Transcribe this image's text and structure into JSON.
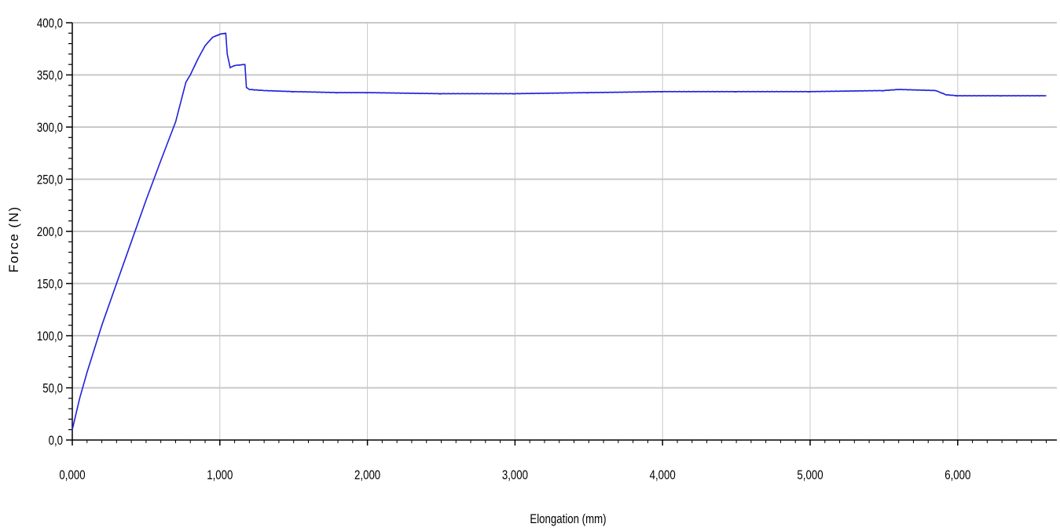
{
  "chart_data": {
    "type": "line",
    "title": "",
    "xlabel": "Elongation (mm)",
    "ylabel": "Force (N)",
    "xlim": [
      0,
      6.6
    ],
    "ylim": [
      0,
      400
    ],
    "x_ticks": [
      0,
      1,
      2,
      3,
      4,
      5,
      6
    ],
    "x_tick_labels": [
      "0,000",
      "1,000",
      "2,000",
      "3,000",
      "4,000",
      "5,000",
      "6,000"
    ],
    "y_ticks": [
      0,
      50,
      100,
      150,
      200,
      250,
      300,
      350,
      400
    ],
    "y_tick_labels": [
      "0,0",
      "50,0",
      "100,0",
      "150,0",
      "200,0",
      "250,0",
      "300,0",
      "350,0",
      "400,0"
    ],
    "grid": true,
    "colors": {
      "series": "#2222dd",
      "grid": "#c8c8c8",
      "axis": "#000000"
    },
    "series": [
      {
        "x": [
          0.0,
          0.05,
          0.1,
          0.2,
          0.3,
          0.4,
          0.5,
          0.6,
          0.7,
          0.77,
          0.8,
          0.85,
          0.9,
          0.95,
          1.0,
          1.04,
          1.05,
          1.07,
          1.1,
          1.17,
          1.18,
          1.2,
          1.3,
          1.5,
          1.8,
          2.0,
          2.5,
          3.0,
          3.5,
          4.0,
          4.5,
          5.0,
          5.5,
          5.6,
          5.85,
          5.92,
          6.0,
          6.3,
          6.6
        ],
        "y": [
          10,
          40,
          65,
          110,
          150,
          190,
          230,
          268,
          305,
          343,
          350,
          365,
          378,
          386,
          389,
          390,
          370,
          357,
          359,
          360,
          338,
          336,
          335,
          334,
          333,
          333,
          332,
          332,
          333,
          334,
          334,
          334,
          335,
          336,
          335,
          331,
          330,
          330,
          330
        ]
      }
    ]
  }
}
